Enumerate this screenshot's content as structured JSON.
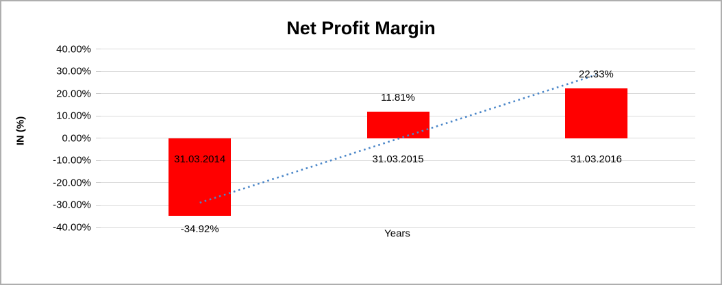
{
  "chart": {
    "title": "Net Profit Margin",
    "y_axis_title": "IN (%)",
    "x_axis_title": "Years"
  },
  "chart_data": {
    "type": "bar",
    "title": "Net Profit Margin",
    "xlabel": "Years",
    "ylabel": "IN (%)",
    "categories": [
      "31.03.2014",
      "31.03.2015",
      "31.03.2016"
    ],
    "values": [
      -34.92,
      11.81,
      22.33
    ],
    "data_labels": [
      "-34.92%",
      "11.81%",
      "22.33%"
    ],
    "y_tick_labels": [
      "40.00%",
      "30.00%",
      "20.00%",
      "10.00%",
      "0.00%",
      "-10.00%",
      "-20.00%",
      "-30.00%",
      "-40.00%"
    ],
    "y_tick_values": [
      40,
      30,
      20,
      10,
      0,
      -10,
      -20,
      -30,
      -40
    ],
    "ylim": [
      -40,
      40
    ],
    "grid": true,
    "legend": false,
    "bar_color": "#ff0000",
    "gridline_color": "#d9d9d9",
    "text_color": "#000000",
    "trendline": {
      "type": "linear",
      "style": "dotted",
      "color": "#4a86c8",
      "start_value": -28.9,
      "end_value": 28.4
    }
  }
}
